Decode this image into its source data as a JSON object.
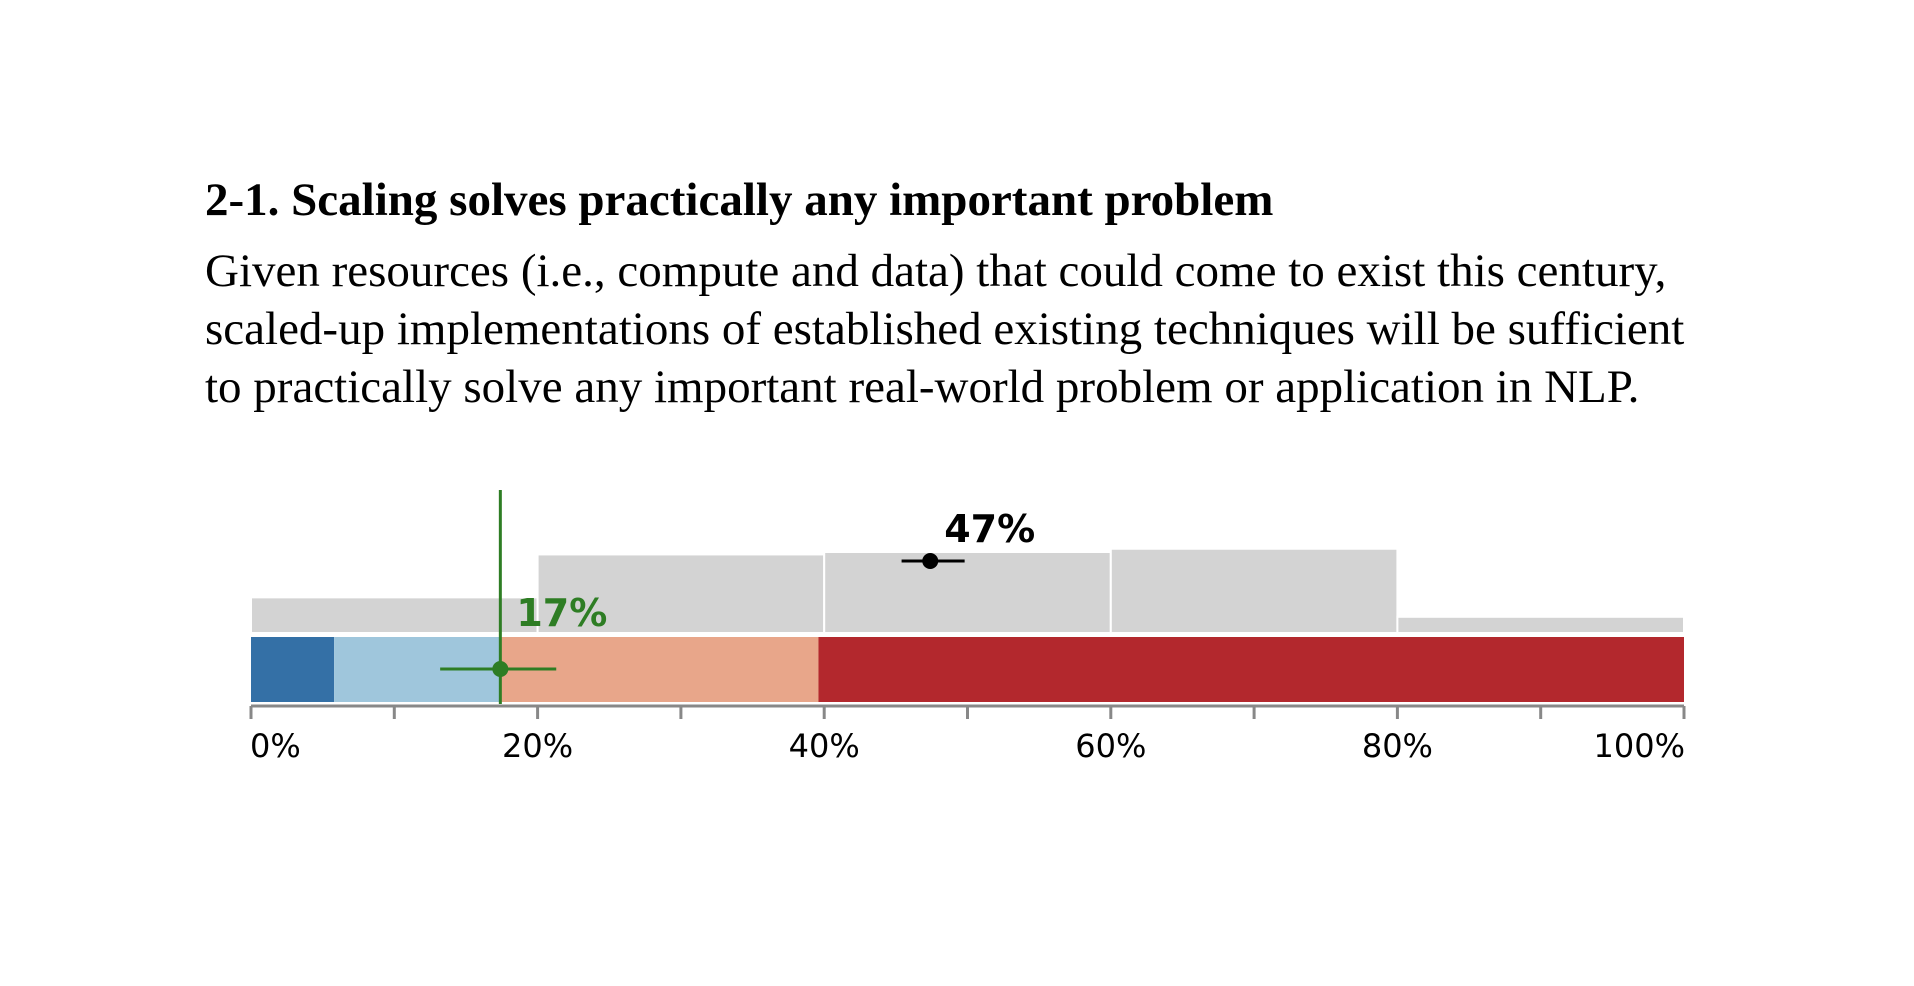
{
  "heading": "2-1. Scaling solves practically any important problem",
  "statement_lines": [
    "Given resources (i.e., compute and data) that could come to exist this century,",
    "scaled-up implementations of established existing techniques will be sufficient",
    "to practically solve any important real-world problem or application in NLP."
  ],
  "chart_data": {
    "type": "bar",
    "x_range": [
      0,
      100
    ],
    "x_ticks": [
      0,
      20,
      40,
      60,
      80,
      100
    ],
    "x_minor_ticks": [
      10,
      30,
      50,
      70,
      90
    ],
    "tick_labels": [
      "0%",
      "20%",
      "40%",
      "60%",
      "80%",
      "100%"
    ],
    "histogram": {
      "bins": [
        [
          0,
          20
        ],
        [
          20,
          40
        ],
        [
          40,
          60
        ],
        [
          60,
          80
        ],
        [
          80,
          100
        ]
      ],
      "relative_heights": [
        0.44,
        0.97,
        1.0,
        1.04,
        0.2
      ],
      "color": "#d3d3d3"
    },
    "stacked_bar": {
      "segments": [
        {
          "from": 0,
          "to": 5.8,
          "color": "#3470a6"
        },
        {
          "from": 5.8,
          "to": 17.4,
          "color": "#9fc6dc"
        },
        {
          "from": 17.4,
          "to": 39.6,
          "color": "#e8a68a"
        },
        {
          "from": 39.6,
          "to": 100,
          "color": "#b3282d"
        }
      ]
    },
    "markers": [
      {
        "name": "green",
        "value": 17.4,
        "low": 13.2,
        "high": 21.3,
        "label": "17%",
        "color": "#2e7d24",
        "vertical_line": true
      },
      {
        "name": "black",
        "value": 47.4,
        "low": 45.4,
        "high": 49.8,
        "label": "47%",
        "color": "#000000",
        "vertical_line": false
      }
    ]
  }
}
